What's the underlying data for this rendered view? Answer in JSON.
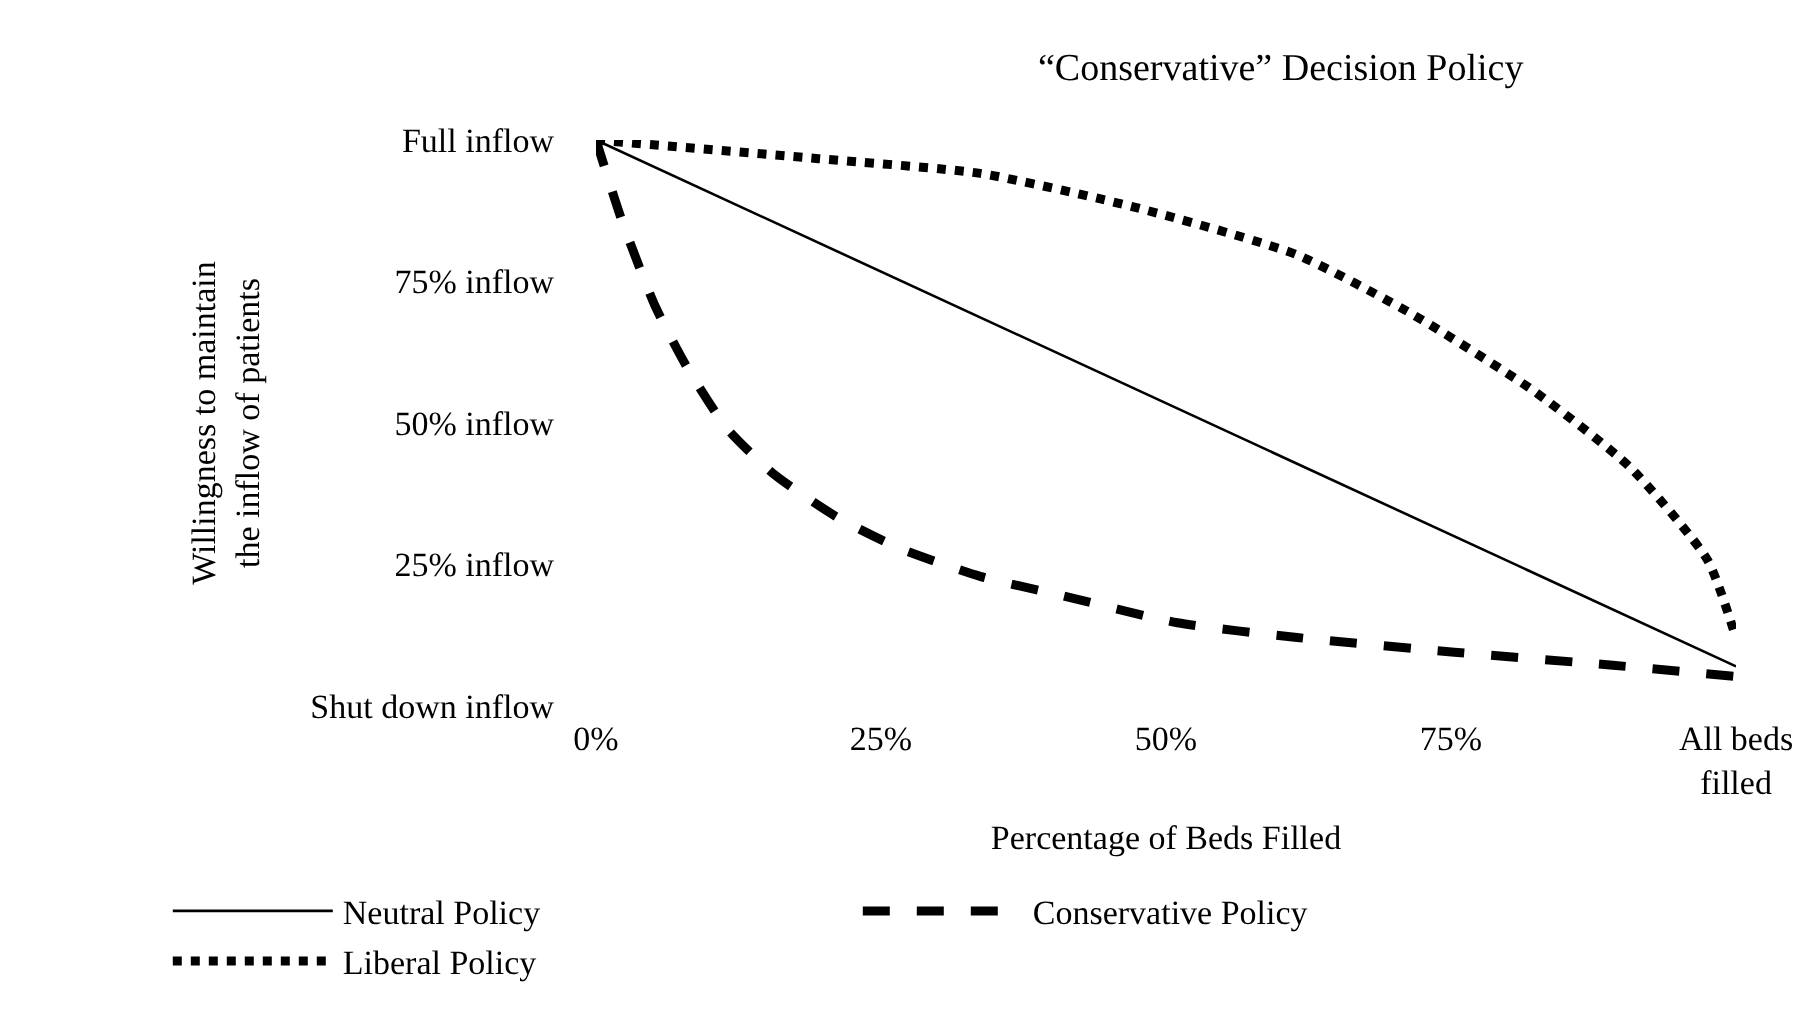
{
  "chart_data": {
    "type": "line",
    "subtitle": "“Conservative” Decision Policy",
    "xlabel": "Percentage of Beds Filled",
    "ylabel": "Willingness to maintain\nthe inflow of patients",
    "xlim": [
      0,
      100
    ],
    "xticks": [
      {
        "value": 0,
        "label": "0%"
      },
      {
        "value": 25,
        "label": "25%"
      },
      {
        "value": 50,
        "label": "50%"
      },
      {
        "value": 75,
        "label": "75%"
      },
      {
        "value": 100,
        "label": "All beds\nfilled"
      }
    ],
    "ylim": [
      0,
      100
    ],
    "yticks": [
      {
        "value": 0,
        "label": "Shut down inflow"
      },
      {
        "value": 25,
        "label": "25% inflow"
      },
      {
        "value": 50,
        "label": "50% inflow"
      },
      {
        "value": 75,
        "label": "75% inflow"
      },
      {
        "value": 100,
        "label": "Full inflow"
      }
    ],
    "grid": false,
    "legend": "bottom",
    "marker": "none",
    "series": [
      {
        "name": "Neutral Policy",
        "color": "#000000",
        "line_style": "solid",
        "x": [
          0,
          100
        ],
        "values": [
          100,
          7
        ]
      },
      {
        "name": "Conservative Policy",
        "color": "#000000",
        "line_style": "dashed",
        "x": [
          0,
          2.3,
          5.2,
          8,
          11.5,
          15.7,
          21.2,
          26.7,
          33.7,
          40.7,
          51,
          61.5,
          75.3,
          89.2,
          100
        ],
        "values": [
          100,
          85.6,
          70.6,
          59.8,
          49,
          40.8,
          33.3,
          27.8,
          22.9,
          19.6,
          14.7,
          12.1,
          9.5,
          7.2,
          5.2
        ]
      },
      {
        "name": "Liberal Policy",
        "color": "#000000",
        "line_style": "dotted",
        "x": [
          0,
          19.5,
          33.7,
          47.5,
          61.5,
          71.8,
          82.3,
          90.7,
          97.5,
          100
        ],
        "values": [
          100,
          96.7,
          94.1,
          88,
          79.7,
          69,
          55.6,
          42.2,
          25.8,
          12
        ]
      }
    ]
  }
}
